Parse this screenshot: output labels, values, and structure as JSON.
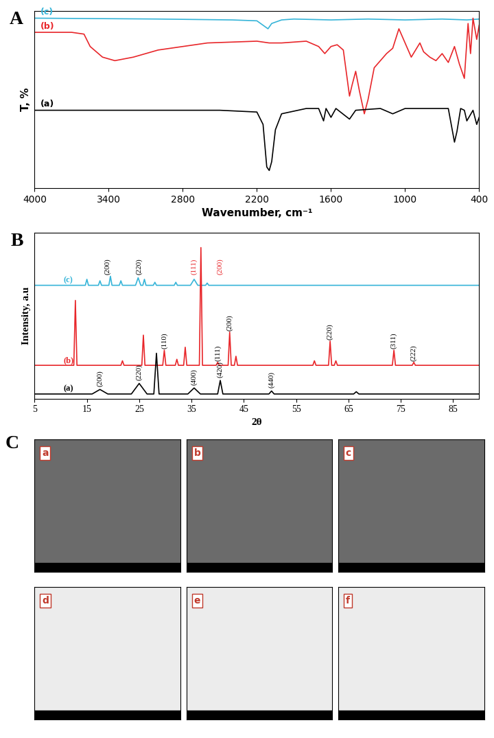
{
  "chart_data": [
    {
      "type": "line",
      "title": "A",
      "x_label": "Wavenumber, cm⁻¹",
      "y_label": "T, %",
      "xlim": [
        4000,
        400
      ],
      "xticks": [
        4000,
        3400,
        2800,
        2200,
        1600,
        1000,
        400
      ],
      "ylim": [
        0,
        100
      ],
      "tick_labels": "x",
      "series": [
        {
          "name": "(c)",
          "color": "#35b4d8",
          "x": [
            4000,
            3000,
            2400,
            2200,
            2150,
            2110,
            2080,
            2000,
            1900,
            1600,
            1300,
            1000,
            700,
            500,
            400
          ],
          "values": [
            96,
            95.5,
            95,
            94.5,
            92,
            90,
            93,
            95,
            95.5,
            95,
            95.5,
            95,
            95.5,
            95,
            95.5
          ]
        },
        {
          "name": "(b)",
          "color": "#e8262a",
          "x": [
            4000,
            3700,
            3600,
            3550,
            3450,
            3350,
            3200,
            3000,
            2600,
            2200,
            2100,
            2000,
            1800,
            1700,
            1650,
            1600,
            1550,
            1500,
            1450,
            1430,
            1400,
            1370,
            1330,
            1300,
            1250,
            1150,
            1100,
            1050,
            1000,
            950,
            880,
            850,
            800,
            750,
            700,
            650,
            600,
            560,
            520,
            490,
            470,
            450,
            420,
            400
          ],
          "values": [
            88,
            88,
            87,
            80,
            74,
            72,
            74,
            78,
            82,
            83,
            82,
            82,
            83,
            80,
            76,
            80,
            81,
            78,
            52,
            58,
            66,
            55,
            42,
            50,
            68,
            76,
            79,
            90,
            82,
            74,
            82,
            77,
            74,
            72,
            76,
            71,
            80,
            70,
            62,
            93,
            76,
            96,
            84,
            92
          ]
        },
        {
          "name": "(a)",
          "color": "#000000",
          "x": [
            4000,
            3000,
            2500,
            2200,
            2150,
            2120,
            2100,
            2080,
            2050,
            2000,
            1800,
            1700,
            1660,
            1640,
            1600,
            1560,
            1450,
            1400,
            1200,
            1100,
            1000,
            800,
            650,
            600,
            580,
            550,
            520,
            500,
            450,
            420,
            400
          ],
          "values": [
            44,
            44,
            44,
            43,
            36,
            12,
            10,
            15,
            33,
            42,
            45,
            45,
            38,
            45,
            40,
            45,
            39,
            44,
            45,
            42,
            45,
            45,
            45,
            26,
            32,
            45,
            44,
            38,
            44,
            36,
            40
          ]
        }
      ]
    },
    {
      "type": "line",
      "title": "B",
      "x_label": "2θ",
      "y_label": "Intensity, a.u",
      "xlim": [
        5,
        90
      ],
      "xticks": [
        5,
        15,
        25,
        35,
        45,
        55,
        65,
        75,
        85
      ],
      "ylim": [
        0,
        110
      ],
      "tick_labels": "x",
      "series": [
        {
          "name": "(c)",
          "color": "#35b4d8",
          "x": [
            5,
            14.7,
            15,
            15.3,
            17.2,
            17.5,
            17.8,
            19.2,
            19.5,
            19.8,
            21.2,
            21.5,
            21.8,
            24.3,
            24.8,
            25.3,
            25.7,
            26,
            26.3,
            27.7,
            28,
            28.3,
            31.7,
            32,
            32.3,
            34.8,
            35.5,
            36.2,
            37.7,
            38,
            38.3,
            90
          ],
          "values": [
            75,
            75,
            79,
            75,
            75,
            78,
            75,
            75,
            81,
            75,
            75,
            78,
            75,
            75,
            80,
            75,
            75,
            79,
            75,
            75,
            77,
            75,
            75,
            77,
            75,
            75,
            79,
            75,
            75,
            76.5,
            75,
            75
          ],
          "annotations": [
            {
              "text": "(200)",
              "x": 19,
              "y": 82,
              "color": "#000000"
            },
            {
              "text": "(220)",
              "x": 25,
              "y": 82,
              "color": "#000000"
            },
            {
              "text": "(111)",
              "x": 35.5,
              "y": 82,
              "color": "#e8262a"
            },
            {
              "text": "(200)",
              "x": 40.5,
              "y": 82,
              "color": "#e8262a"
            }
          ]
        },
        {
          "name": "(b)",
          "color": "#e8262a",
          "x": [
            5,
            12.5,
            12.8,
            13.1,
            21.5,
            21.8,
            22.1,
            25.5,
            25.8,
            26.1,
            29.5,
            29.8,
            30.1,
            31.9,
            32.2,
            32.5,
            33.5,
            33.8,
            34.1,
            36.5,
            36.8,
            37.1,
            39.7,
            40,
            40.3,
            42,
            42.3,
            42.6,
            43.2,
            43.5,
            43.8,
            58.2,
            58.5,
            58.8,
            61.2,
            61.5,
            61.8,
            62.3,
            62.6,
            62.9,
            73.4,
            73.7,
            74,
            77.2,
            77.5,
            77.8,
            90
          ],
          "values": [
            22,
            22,
            65,
            22,
            22,
            25,
            22,
            22,
            42,
            22,
            22,
            32,
            22,
            22,
            26,
            22,
            22,
            34,
            22,
            22,
            100,
            22,
            22,
            24,
            22,
            22,
            44,
            22,
            22,
            28,
            22,
            22,
            25,
            22,
            22,
            38,
            22,
            22,
            25,
            22,
            22,
            32,
            22,
            22,
            24,
            22,
            22
          ],
          "annotations": [
            {
              "text": "(110)",
              "x": 29.8,
              "y": 33,
              "color": "#000000"
            },
            {
              "text": "(111)",
              "x": 40,
              "y": 25,
              "color": "#000000"
            },
            {
              "text": "(200)",
              "x": 42.3,
              "y": 45,
              "color": "#000000"
            },
            {
              "text": "(220)",
              "x": 61.5,
              "y": 39,
              "color": "#000000"
            },
            {
              "text": "(311)",
              "x": 73.7,
              "y": 33,
              "color": "#000000"
            },
            {
              "text": "(222)",
              "x": 77.5,
              "y": 25,
              "color": "#000000"
            }
          ]
        },
        {
          "name": "(a)",
          "color": "#000000",
          "x": [
            5,
            16,
            17.5,
            19,
            23.5,
            25,
            26.5,
            27.8,
            28.3,
            28.8,
            34.3,
            35.5,
            36.7,
            40,
            40.5,
            41,
            49.8,
            50.3,
            50.8,
            66,
            66.5,
            67,
            90
          ],
          "values": [
            3,
            3,
            6,
            3,
            3,
            10,
            3,
            3,
            30,
            3,
            3,
            7,
            3,
            3,
            12,
            3,
            3,
            5,
            3,
            3,
            4.5,
            3,
            3
          ],
          "annotations": [
            {
              "text": "(200)",
              "x": 17.5,
              "y": 8,
              "color": "#000000"
            },
            {
              "text": "(220)",
              "x": 25,
              "y": 12,
              "color": "#000000"
            },
            {
              "text": "(400)",
              "x": 35.5,
              "y": 9,
              "color": "#000000"
            },
            {
              "text": "(420)",
              "x": 40.5,
              "y": 14,
              "color": "#000000"
            },
            {
              "text": "(440)",
              "x": 50.3,
              "y": 7,
              "color": "#000000"
            }
          ]
        }
      ]
    }
  ],
  "images": {
    "title": "C",
    "panels": [
      "a",
      "b",
      "c",
      "d",
      "e",
      "f"
    ]
  }
}
